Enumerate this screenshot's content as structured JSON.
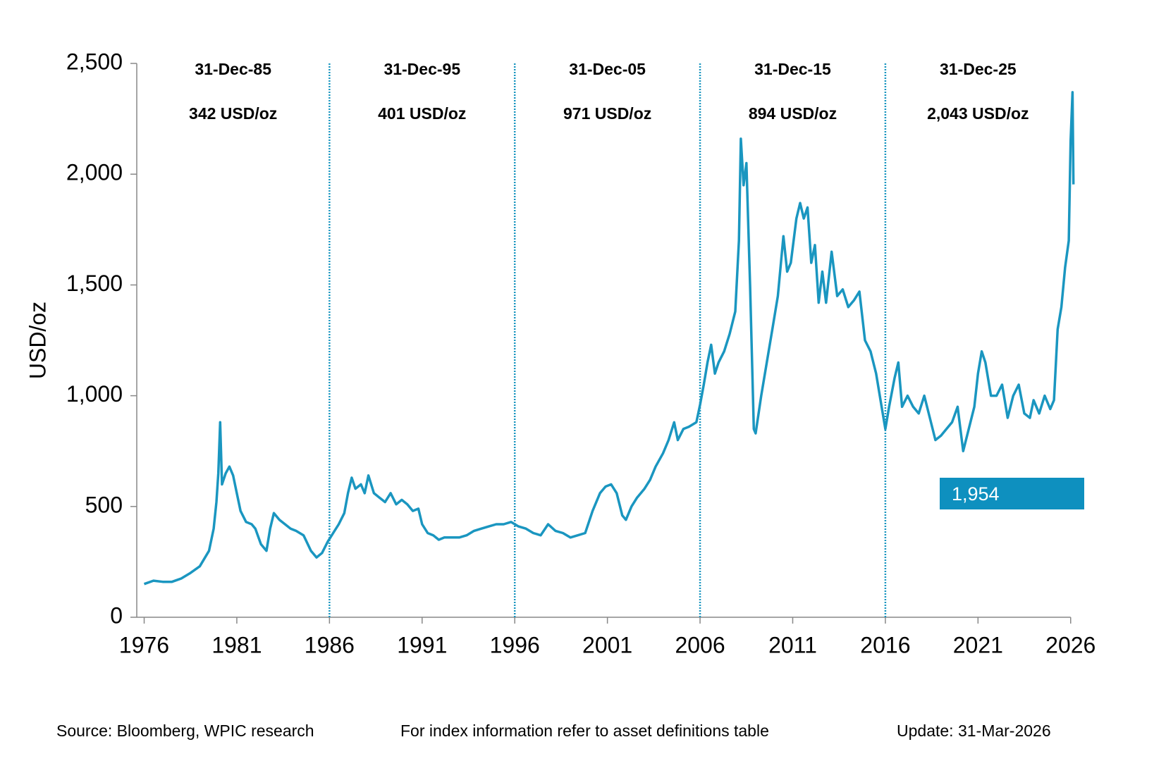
{
  "chart_data": {
    "type": "line",
    "y_label": "USD/oz",
    "x": [
      1976.0,
      1976.5,
      1977.0,
      1977.5,
      1978.0,
      1978.5,
      1979.0,
      1979.5,
      1979.75,
      1979.9,
      1980.0,
      1980.1,
      1980.2,
      1980.4,
      1980.6,
      1980.8,
      1981.0,
      1981.2,
      1981.5,
      1981.8,
      1982.0,
      1982.3,
      1982.6,
      1982.8,
      1983.0,
      1983.3,
      1983.6,
      1983.9,
      1984.2,
      1984.6,
      1985.0,
      1985.3,
      1985.6,
      1985.9,
      1986.2,
      1986.5,
      1986.8,
      1987.0,
      1987.2,
      1987.4,
      1987.7,
      1987.9,
      1988.1,
      1988.4,
      1988.7,
      1989.0,
      1989.3,
      1989.6,
      1989.9,
      1990.2,
      1990.5,
      1990.8,
      1991.0,
      1991.3,
      1991.6,
      1991.9,
      1992.2,
      1992.6,
      1993.0,
      1993.4,
      1993.8,
      1994.2,
      1994.6,
      1995.0,
      1995.4,
      1995.8,
      1996.2,
      1996.6,
      1997.0,
      1997.4,
      1997.8,
      1998.2,
      1998.6,
      1999.0,
      1999.4,
      1999.8,
      2000.2,
      2000.6,
      2000.9,
      2001.2,
      2001.5,
      2001.8,
      2002.0,
      2002.3,
      2002.6,
      2003.0,
      2003.3,
      2003.6,
      2004.0,
      2004.3,
      2004.6,
      2004.8,
      2005.1,
      2005.4,
      2005.8,
      2006.0,
      2006.2,
      2006.4,
      2006.6,
      2006.8,
      2007.0,
      2007.3,
      2007.6,
      2007.9,
      2008.1,
      2008.2,
      2008.35,
      2008.5,
      2008.7,
      2008.9,
      2009.0,
      2009.3,
      2009.6,
      2009.9,
      2010.2,
      2010.5,
      2010.7,
      2010.9,
      2011.2,
      2011.4,
      2011.6,
      2011.8,
      2012.0,
      2012.2,
      2012.4,
      2012.6,
      2012.8,
      2013.1,
      2013.4,
      2013.7,
      2014.0,
      2014.3,
      2014.6,
      2014.9,
      2015.2,
      2015.5,
      2015.8,
      2016.0,
      2016.2,
      2016.5,
      2016.7,
      2016.9,
      2017.2,
      2017.5,
      2017.8,
      2018.1,
      2018.4,
      2018.7,
      2019.0,
      2019.3,
      2019.6,
      2019.9,
      2020.2,
      2020.5,
      2020.8,
      2021.0,
      2021.2,
      2021.4,
      2021.7,
      2022.0,
      2022.3,
      2022.6,
      2022.9,
      2023.2,
      2023.5,
      2023.8,
      2024.0,
      2024.3,
      2024.6,
      2024.9,
      2025.1,
      2025.3,
      2025.5,
      2025.7,
      2025.9,
      2026.0,
      2026.1,
      2026.15
    ],
    "values": [
      150,
      165,
      160,
      160,
      175,
      200,
      230,
      300,
      400,
      520,
      650,
      880,
      600,
      650,
      680,
      640,
      560,
      480,
      430,
      420,
      400,
      330,
      300,
      400,
      470,
      440,
      420,
      400,
      390,
      370,
      300,
      270,
      290,
      340,
      380,
      420,
      470,
      560,
      630,
      580,
      600,
      560,
      640,
      560,
      540,
      520,
      560,
      510,
      530,
      510,
      480,
      490,
      420,
      380,
      370,
      350,
      360,
      360,
      360,
      370,
      390,
      400,
      410,
      420,
      420,
      430,
      410,
      400,
      380,
      370,
      420,
      390,
      380,
      360,
      370,
      380,
      480,
      560,
      590,
      600,
      560,
      460,
      440,
      500,
      540,
      580,
      620,
      680,
      740,
      800,
      880,
      800,
      850,
      860,
      880,
      960,
      1050,
      1150,
      1230,
      1100,
      1150,
      1200,
      1280,
      1380,
      1700,
      2160,
      1950,
      2050,
      1500,
      850,
      830,
      1000,
      1150,
      1300,
      1450,
      1720,
      1560,
      1600,
      1800,
      1870,
      1800,
      1850,
      1600,
      1680,
      1420,
      1560,
      1420,
      1650,
      1450,
      1480,
      1400,
      1430,
      1470,
      1250,
      1200,
      1100,
      950,
      850,
      950,
      1080,
      1150,
      950,
      1000,
      950,
      920,
      1000,
      900,
      800,
      820,
      850,
      880,
      950,
      750,
      850,
      950,
      1100,
      1200,
      1150,
      1000,
      1000,
      1050,
      900,
      1000,
      1050,
      920,
      900,
      980,
      920,
      1000,
      940,
      980,
      1300,
      1400,
      1580,
      1700,
      2150,
      2370,
      1954
    ],
    "color": "#1a96c0",
    "callout": {
      "value": 1954,
      "label": "1,954"
    },
    "callout_color": "#0e90bf",
    "xlim": [
      1975.6,
      2026.2
    ],
    "xticks": [
      1976,
      1981,
      1986,
      1991,
      1996,
      2001,
      2006,
      2011,
      2016,
      2021,
      2026
    ],
    "ylim": [
      0,
      2500
    ],
    "yticks": [
      0,
      500,
      {
        "value": 1000,
        "label": "1,000"
      },
      {
        "value": 1500,
        "label": "1,500"
      },
      {
        "value": 2000,
        "label": "2,000"
      },
      {
        "value": 2500,
        "label": "2,500"
      }
    ],
    "period_lines": [
      1986,
      1996,
      2006,
      2016
    ],
    "annotations": [
      {
        "date": "31-Dec-85",
        "price": "342 USD/oz"
      },
      {
        "date": "31-Dec-95",
        "price": "401 USD/oz"
      },
      {
        "date": "31-Dec-05",
        "price": "971 USD/oz"
      },
      {
        "date": "31-Dec-15",
        "price": "894 USD/oz"
      },
      {
        "date": "31-Dec-25",
        "price": "2,043 USD/oz"
      }
    ],
    "footer": [
      "Source: Bloomberg, WPIC research",
      "For index information refer to asset definitions table",
      "Update: 31-Mar-2026"
    ]
  }
}
